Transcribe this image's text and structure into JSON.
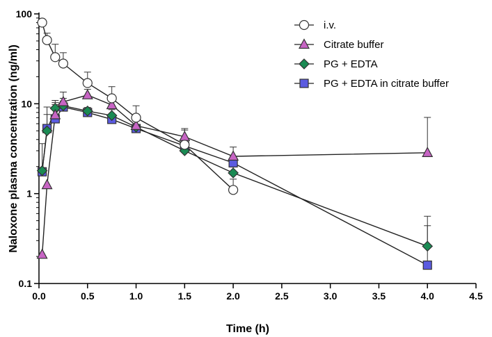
{
  "chart_data": {
    "type": "line",
    "title": "",
    "xlabel": "Time (h)",
    "ylabel": "Naloxone plasma concentration (ng/ml)",
    "x_scale": "linear",
    "y_scale": "log",
    "xlim": [
      0,
      4.5
    ],
    "ylim": [
      0.1,
      100
    ],
    "x_ticks": [
      0,
      0.5,
      1,
      1.5,
      2,
      2.5,
      3,
      3.5,
      4,
      4.5
    ],
    "x_tick_labels": [
      "0.0",
      "0.5",
      "1.0",
      "1.5",
      "2.0",
      "2.5",
      "3.0",
      "3.5",
      "4.0",
      "4.5"
    ],
    "y_ticks": [
      0.1,
      1,
      10,
      100
    ],
    "y_tick_labels": [
      "0.1",
      "1",
      "10",
      "100"
    ],
    "grid": false,
    "legend_position": "top-right",
    "series": [
      {
        "name": "i.v.",
        "marker": "circle",
        "color": "#ffffff",
        "x": [
          0.033,
          0.083,
          0.167,
          0.25,
          0.5,
          0.75,
          1.0,
          1.5,
          2.0
        ],
        "y": [
          80,
          51,
          33,
          28,
          17,
          11.5,
          7.0,
          3.5,
          1.1
        ],
        "err": [
          0,
          10,
          13,
          9,
          5.5,
          4,
          2.5,
          1.6,
          0.35
        ]
      },
      {
        "name": "Citrate buffer",
        "marker": "triangle",
        "color": "#c764c4",
        "x": [
          0.033,
          0.083,
          0.167,
          0.25,
          0.5,
          0.75,
          1.0,
          1.5,
          2.0,
          4.0
        ],
        "y": [
          0.21,
          1.25,
          7.5,
          10.5,
          12.5,
          9.7,
          5.7,
          4.3,
          2.6,
          2.85
        ],
        "err": [
          0,
          0,
          2.3,
          3,
          2,
          2,
          1.5,
          1.0,
          0.7,
          4.2
        ]
      },
      {
        "name": "PG + EDTA",
        "marker": "diamond",
        "color": "#1a8a53",
        "x": [
          0.033,
          0.083,
          0.167,
          0.25,
          0.5,
          0.75,
          1.0,
          1.5,
          2.0,
          4.0
        ],
        "y": [
          1.8,
          5.0,
          8.9,
          9.5,
          8.3,
          7.4,
          5.5,
          3.0,
          1.7,
          0.26
        ],
        "err": [
          1.8,
          4.2,
          2.0,
          2.0,
          0.8,
          1.2,
          1.0,
          0.6,
          0.4,
          0.3
        ]
      },
      {
        "name": "PG + EDTA in citrate buffer",
        "marker": "square",
        "color": "#5b5be0",
        "x": [
          0.033,
          0.083,
          0.167,
          0.25,
          0.5,
          0.75,
          1.0,
          1.5,
          2.0,
          4.0
        ],
        "y": [
          1.75,
          5.3,
          6.8,
          9.2,
          8.0,
          6.7,
          5.3,
          3.4,
          2.2,
          0.16
        ],
        "err": [
          0,
          2.3,
          3.5,
          1.5,
          0.8,
          0.8,
          0.6,
          0.5,
          0.4,
          0.28
        ]
      }
    ]
  }
}
